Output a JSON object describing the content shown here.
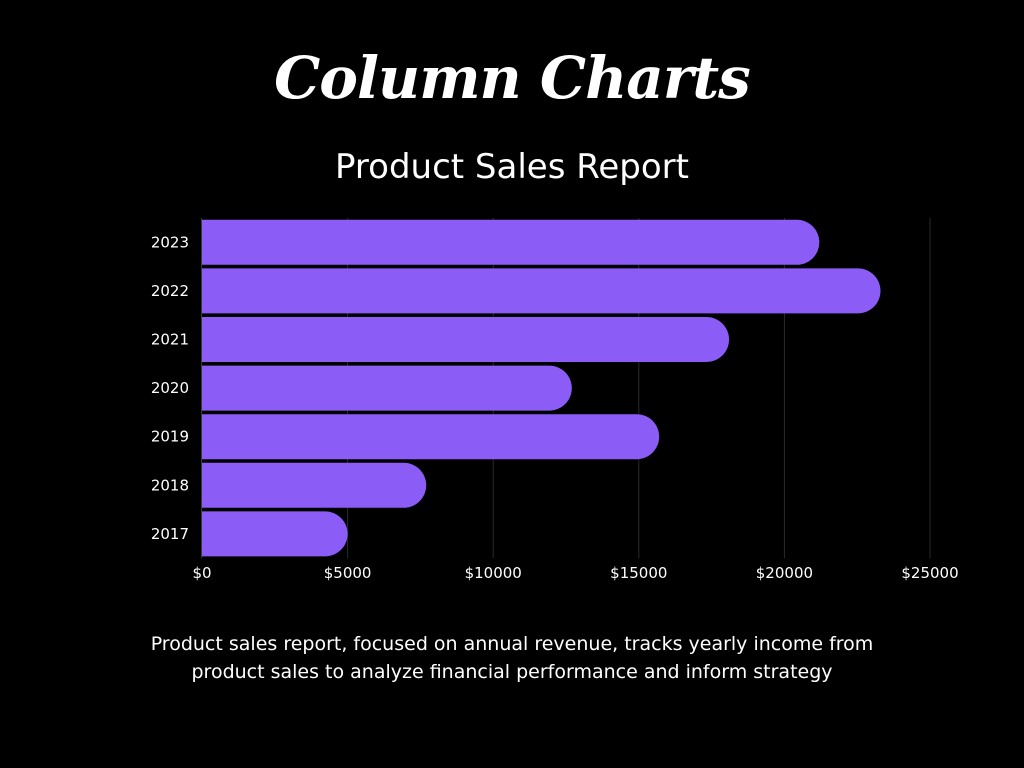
{
  "page": {
    "title": "Column Charts",
    "description": "Product sales report, focused on annual revenue, tracks yearly income from product sales to analyze financial performance and inform strategy"
  },
  "colors": {
    "background": "#000000",
    "bar": "#8b5cf6",
    "text": "#ffffff",
    "grid": "#2a2a2a"
  },
  "chart_data": {
    "type": "bar",
    "orientation": "horizontal",
    "title": "Product Sales Report",
    "xlabel": "",
    "ylabel": "",
    "categories": [
      "2023",
      "2022",
      "2021",
      "2020",
      "2019",
      "2018",
      "2017"
    ],
    "values": [
      21200,
      23300,
      18100,
      12700,
      15700,
      7700,
      5000
    ],
    "xlim": [
      0,
      25000
    ],
    "x_ticks": [
      0,
      5000,
      10000,
      15000,
      20000,
      25000
    ],
    "x_tick_labels": [
      "$0",
      "$5000",
      "$10000",
      "$15000",
      "$20000",
      "$25000"
    ],
    "grid": true,
    "legend": "none"
  }
}
